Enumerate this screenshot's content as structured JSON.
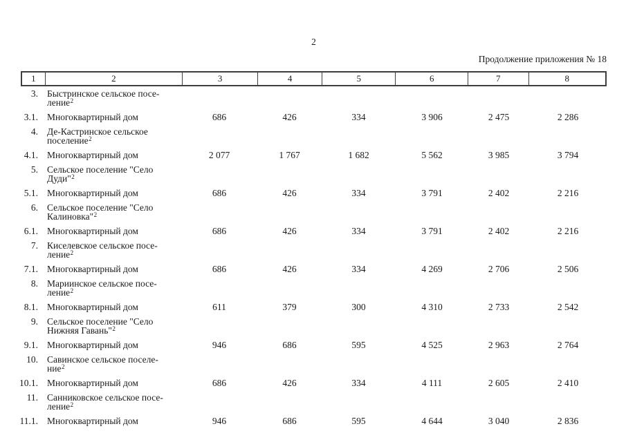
{
  "page": {
    "number": "2",
    "continuation": "Продолжение приложения № 18"
  },
  "table": {
    "header": [
      "1",
      "2",
      "3",
      "4",
      "5",
      "6",
      "7",
      "8"
    ],
    "rows": [
      {
        "num": "3.",
        "name": "Быстринское сельское посе-\nление",
        "footnote": "2",
        "values": []
      },
      {
        "num": "3.1.",
        "name": "Многоквартирный дом",
        "values": [
          "686",
          "426",
          "334",
          "3 906",
          "2 475",
          "2 286"
        ]
      },
      {
        "num": "4.",
        "name": "Де-Кастринское сельское\nпоселение",
        "footnote": "2",
        "values": []
      },
      {
        "num": "4.1.",
        "name": "Многоквартирный дом",
        "values": [
          "2 077",
          "1 767",
          "1 682",
          "5 562",
          "3 985",
          "3 794"
        ]
      },
      {
        "num": "5.",
        "name": "Сельское поселение \"Село\nДуди\"",
        "footnote": "2",
        "values": []
      },
      {
        "num": "5.1.",
        "name": "Многоквартирный дом",
        "values": [
          "686",
          "426",
          "334",
          "3 791",
          "2 402",
          "2 216"
        ]
      },
      {
        "num": "6.",
        "name": "Сельское поселение \"Село\nКалиновка\"",
        "footnote": "2",
        "values": []
      },
      {
        "num": "6.1.",
        "name": "Многоквартирный дом",
        "values": [
          "686",
          "426",
          "334",
          "3 791",
          "2 402",
          "2 216"
        ]
      },
      {
        "num": "7.",
        "name": "Киселевское сельское посе-\nление",
        "footnote": "2",
        "values": []
      },
      {
        "num": "7.1.",
        "name": "Многоквартирный дом",
        "values": [
          "686",
          "426",
          "334",
          "4 269",
          "2 706",
          "2 506"
        ]
      },
      {
        "num": "8.",
        "name": "Мариинское сельское посе-\nление",
        "footnote": "2",
        "values": []
      },
      {
        "num": "8.1.",
        "name": "Многоквартирный дом",
        "values": [
          "611",
          "379",
          "300",
          "4 310",
          "2 733",
          "2 542"
        ]
      },
      {
        "num": "9.",
        "name": "Сельское поселение \"Село\nНижняя Гавань\"",
        "footnote": "2",
        "values": []
      },
      {
        "num": "9.1.",
        "name": "Многоквартирный дом",
        "values": [
          "946",
          "686",
          "595",
          "4 525",
          "2 963",
          "2 764"
        ]
      },
      {
        "num": "10.",
        "name": "Савинское сельское поселе-\nние",
        "footnote": "2",
        "values": []
      },
      {
        "num": "10.1.",
        "name": "Многоквартирный дом",
        "values": [
          "686",
          "426",
          "334",
          "4 111",
          "2 605",
          "2 410"
        ]
      },
      {
        "num": "11.",
        "name": "Санниковское сельское посе-\nление",
        "footnote": "2",
        "values": []
      },
      {
        "num": "11.1.",
        "name": "Многоквартирный дом",
        "values": [
          "946",
          "686",
          "595",
          "4 644",
          "3 040",
          "2 836"
        ]
      }
    ]
  }
}
